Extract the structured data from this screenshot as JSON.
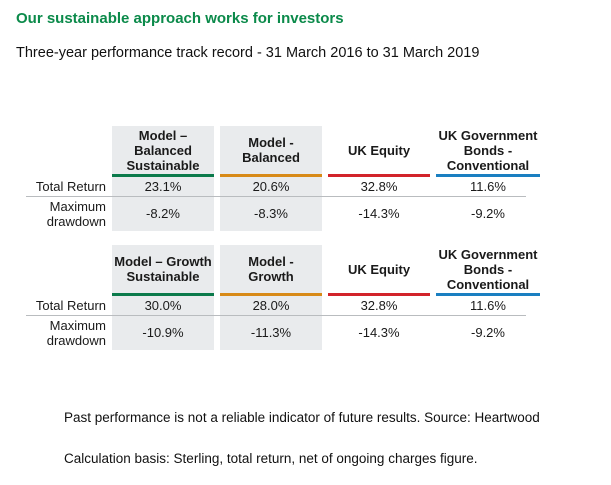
{
  "heading": "Our sustainable approach works for investors",
  "subheading": "Three-year performance track record - 31 March 2016 to 31 March 2019",
  "tables": [
    {
      "columns": [
        {
          "line1": "Model – Balanced",
          "line2": "Sustainable",
          "line3": "",
          "rule_color": "#0b7a4b"
        },
        {
          "line1": "Model -",
          "line2": "Balanced",
          "line3": "",
          "rule_color": "#d88a17"
        },
        {
          "line1": "UK Equity",
          "line2": "",
          "line3": "",
          "rule_color": "#d2232a"
        },
        {
          "line1": "UK Government",
          "line2": "Bonds -",
          "line3": "Conventional",
          "rule_color": "#1a7fc1"
        }
      ],
      "rows": [
        {
          "label1": "Total Return",
          "label2": "",
          "values": [
            "23.1%",
            "20.6%",
            "32.8%",
            "11.6%"
          ]
        },
        {
          "label1": "Maximum",
          "label2": "drawdown",
          "values": [
            "-8.2%",
            "-8.3%",
            "-14.3%",
            "-9.2%"
          ]
        }
      ]
    },
    {
      "columns": [
        {
          "line1": "Model – Growth",
          "line2": "Sustainable",
          "line3": "",
          "rule_color": "#0b7a4b"
        },
        {
          "line1": "Model -",
          "line2": "Growth",
          "line3": "",
          "rule_color": "#d88a17"
        },
        {
          "line1": "UK Equity",
          "line2": "",
          "line3": "",
          "rule_color": "#d2232a"
        },
        {
          "line1": "UK Government",
          "line2": "Bonds -",
          "line3": "Conventional",
          "rule_color": "#1a7fc1"
        }
      ],
      "rows": [
        {
          "label1": "Total Return",
          "label2": "",
          "values": [
            "30.0%",
            "28.0%",
            "32.8%",
            "11.6%"
          ]
        },
        {
          "label1": "Maximum",
          "label2": "drawdown",
          "values": [
            "-10.9%",
            "-11.3%",
            "-14.3%",
            "-9.2%"
          ]
        }
      ]
    }
  ],
  "notes": [
    "Past performance is not a reliable indicator of future results. Source: Heartwood",
    "Calculation basis: Sterling, total return, net of ongoing charges figure."
  ]
}
